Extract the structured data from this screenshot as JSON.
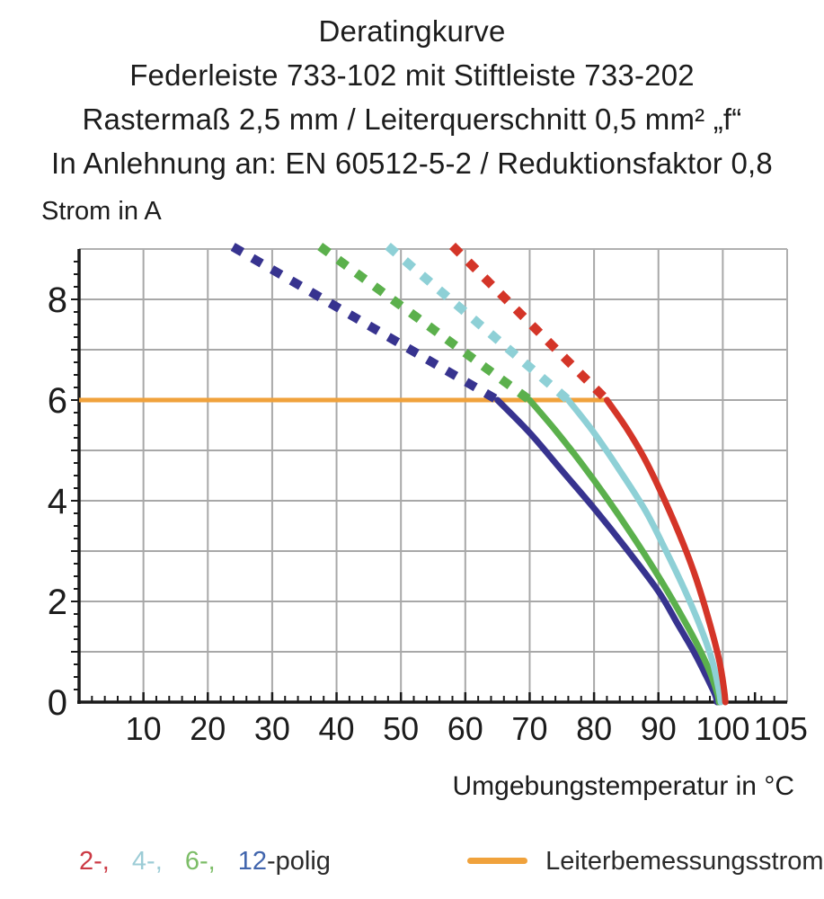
{
  "title": {
    "line1": "Deratingkurve",
    "line2": "Federleiste 733-102 mit Stiftleiste 733-202",
    "line3": "Rastermaß 2,5 mm / Leiterquerschnitt 0,5 mm² „f“",
    "line4": "In Anlehnung an: EN 60512-5-2 / Reduktionsfaktor 0,8"
  },
  "chart_data": {
    "type": "line",
    "title": "Deratingkurve",
    "xlabel": "Umgebungstemperatur in °C",
    "ylabel": "Strom in A",
    "xlim": [
      0,
      110
    ],
    "ylim": [
      0,
      9
    ],
    "x_ticks": [
      10,
      20,
      30,
      40,
      50,
      60,
      70,
      80,
      90,
      100,
      105
    ],
    "y_ticks": [
      0,
      2,
      4,
      6,
      8
    ],
    "x_grid_step": 10,
    "y_grid_step": 1,
    "x_minor_step": 2,
    "y_minor_step": 0.25,
    "grid": true,
    "colors": {
      "grid": "#a8a8a8",
      "frame": "#b0b0b0",
      "axis": "#1a1a1a",
      "tick_text": "#1c1c1c"
    },
    "series": [
      {
        "name": "2-polig",
        "color": "#d43528",
        "dashed": [
          [
            58.5,
            9
          ],
          [
            82,
            6
          ]
        ],
        "solid": [
          [
            82,
            6
          ],
          [
            85,
            5.45
          ],
          [
            88,
            4.8
          ],
          [
            91,
            4.0
          ],
          [
            94,
            3.1
          ],
          [
            96,
            2.4
          ],
          [
            98,
            1.55
          ],
          [
            99.5,
            0.8
          ],
          [
            100.2,
            0.25
          ],
          [
            100.4,
            0
          ]
        ]
      },
      {
        "name": "4-polig",
        "color": "#8ed0d6",
        "dashed": [
          [
            48.5,
            9
          ],
          [
            76,
            6
          ]
        ],
        "solid": [
          [
            76,
            6
          ],
          [
            80,
            5.35
          ],
          [
            84,
            4.6
          ],
          [
            88,
            3.8
          ],
          [
            91,
            3.05
          ],
          [
            94,
            2.25
          ],
          [
            96.5,
            1.5
          ],
          [
            98.3,
            0.85
          ],
          [
            99.3,
            0.3
          ],
          [
            99.7,
            0
          ]
        ]
      },
      {
        "name": "6-polig",
        "color": "#5bb04c",
        "dashed": [
          [
            38,
            9
          ],
          [
            70,
            6
          ]
        ],
        "solid": [
          [
            70,
            6
          ],
          [
            74,
            5.4
          ],
          [
            78,
            4.75
          ],
          [
            82,
            4.05
          ],
          [
            86,
            3.3
          ],
          [
            90,
            2.5
          ],
          [
            93,
            1.85
          ],
          [
            96,
            1.15
          ],
          [
            98,
            0.6
          ],
          [
            99.2,
            0.15
          ],
          [
            99.4,
            0
          ]
        ]
      },
      {
        "name": "12-polig",
        "color": "#37338f",
        "dashed": [
          [
            24.5,
            9
          ],
          [
            65,
            6
          ]
        ],
        "solid": [
          [
            65,
            6
          ],
          [
            70,
            5.35
          ],
          [
            75,
            4.6
          ],
          [
            80,
            3.85
          ],
          [
            85,
            3.05
          ],
          [
            90,
            2.2
          ],
          [
            93,
            1.55
          ],
          [
            95.5,
            1.0
          ],
          [
            97.5,
            0.5
          ],
          [
            98.8,
            0.15
          ],
          [
            99.1,
            0
          ]
        ]
      }
    ],
    "reference_line": {
      "name": "Leiterbemessungsstrom",
      "color": "#f0a23c",
      "value": 6,
      "x_start": 0,
      "x_end": 82
    }
  },
  "legend": {
    "poles": [
      {
        "label": "2-,",
        "color": "#cc3a45"
      },
      {
        "label": "4-,",
        "color": "#9cccd6"
      },
      {
        "label": "6-,",
        "color": "#7cbd67"
      },
      {
        "label": "12",
        "color": "#4165ad"
      }
    ],
    "poles_suffix": "-polig",
    "reference_label": "Leiterbemessungsstrom",
    "reference_color": "#f0a23c"
  }
}
